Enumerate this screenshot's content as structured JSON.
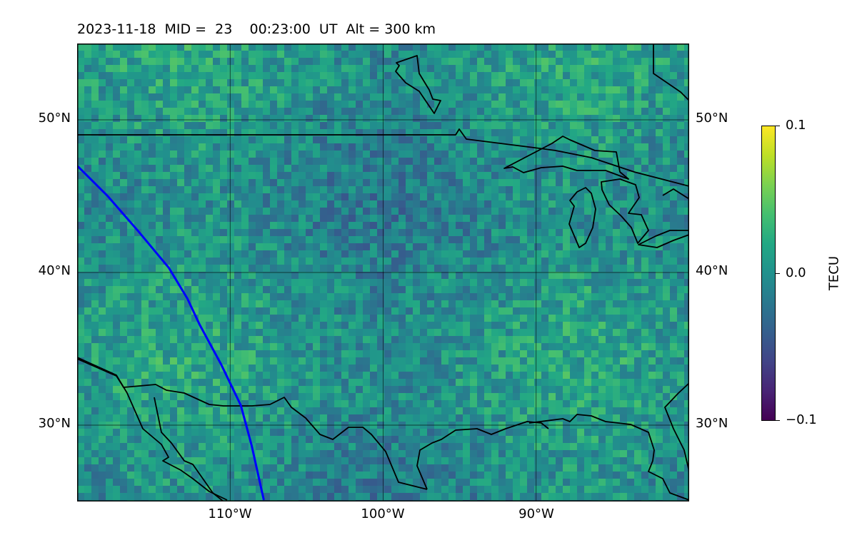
{
  "title": "2023-11-18  MID =  23    00:23:00  UT  Alt = 300 km",
  "map": {
    "extent": {
      "lon_min": -120,
      "lon_max": -80,
      "lat_min": 25,
      "lat_max": 55
    },
    "gridlines": {
      "lons": [
        -110,
        -100,
        -90
      ],
      "lats": [
        30,
        40,
        50
      ]
    },
    "lat_labels": [
      "30°N",
      "40°N",
      "50°N"
    ],
    "lon_labels": [
      "110°W",
      "100°W",
      "90°W"
    ],
    "colormap": "viridis",
    "colors": {
      "land_outline": "#000000",
      "grid": "#000000",
      "track": "#0000ff"
    },
    "track": [
      [
        -120,
        47
      ],
      [
        -118,
        45
      ],
      [
        -116,
        42.7
      ],
      [
        -114,
        40.3
      ],
      [
        -112.8,
        38.3
      ],
      [
        -112.0,
        36.6
      ],
      [
        -110.6,
        34
      ],
      [
        -109.3,
        31.3
      ],
      [
        -108.6,
        28.7
      ],
      [
        -107.8,
        25.1
      ]
    ]
  },
  "colorbar": {
    "label": "TECU",
    "min": -0.1,
    "max": 0.1,
    "ticks": [
      {
        "value": 0.1,
        "label": "0.1"
      },
      {
        "value": 0.0,
        "label": "0.0"
      },
      {
        "value": -0.1,
        "label": "−0.1"
      }
    ]
  }
}
